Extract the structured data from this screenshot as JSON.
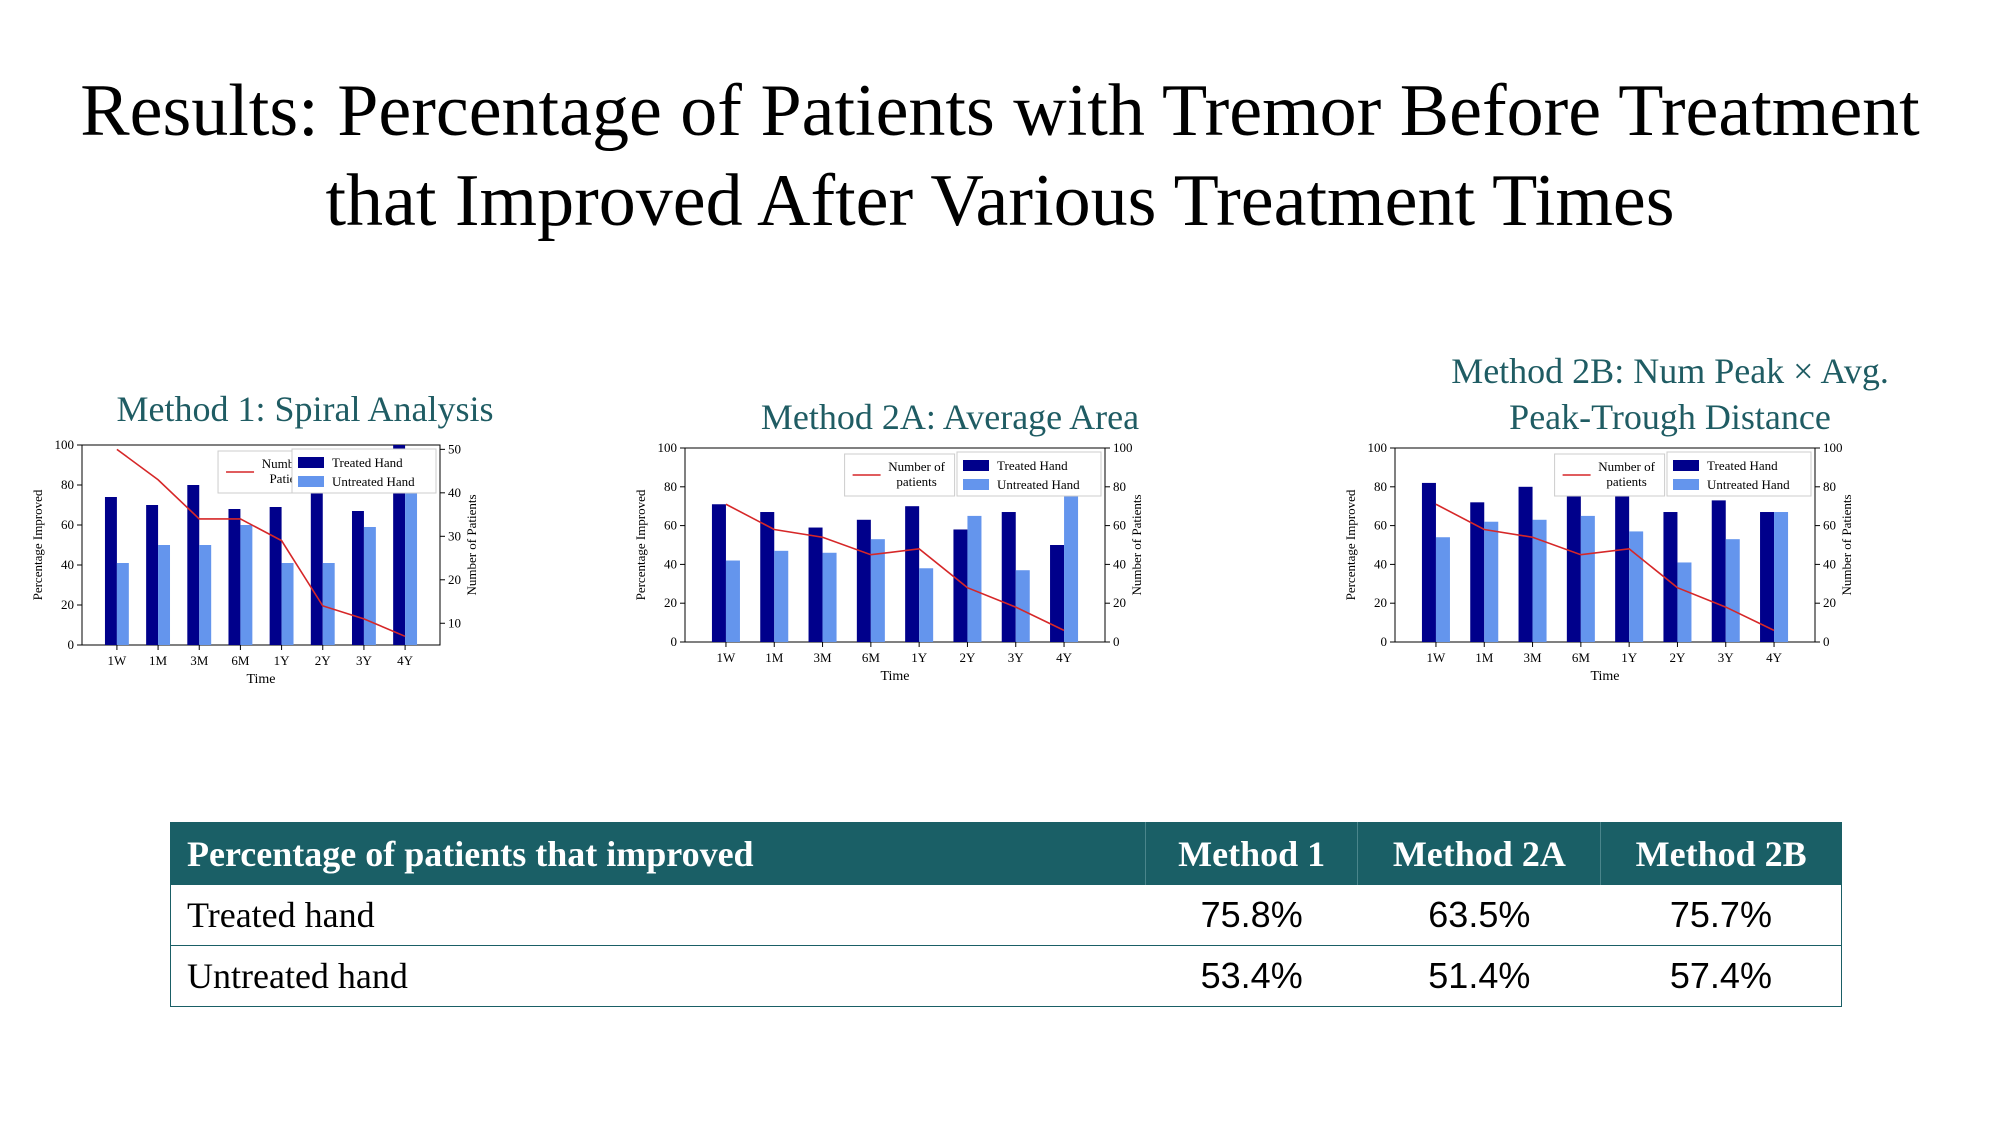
{
  "slide": {
    "title_line1": "Results: Percentage of Patients with Tremor Before Treatment",
    "title_line2": "that Improved After Various Treatment Times"
  },
  "colors": {
    "treated": "#00008b",
    "untreated": "#6495ed",
    "count_line": "#d62728",
    "chart_title": "#1f5c63",
    "table_header": "#1a5f66"
  },
  "chart_data": [
    {
      "type": "bar",
      "title": "Method 1: Spiral Analysis",
      "categories": [
        "1W",
        "1M",
        "3M",
        "6M",
        "1Y",
        "2Y",
        "3Y",
        "4Y"
      ],
      "xlabel": "Time",
      "ylabel": "Percentage Improved",
      "y2label": "Number of  Patients",
      "ylim": [
        0,
        100
      ],
      "yticks": [
        0,
        20,
        40,
        60,
        80,
        100
      ],
      "y2lim": [
        5,
        51
      ],
      "y2ticks": [
        10,
        20,
        30,
        40,
        50
      ],
      "series": [
        {
          "name": "Treated Hand",
          "values": [
            74,
            70,
            80,
            68,
            69,
            80,
            67,
            100
          ]
        },
        {
          "name": "Untreated Hand",
          "values": [
            41,
            50,
            50,
            60,
            41,
            41,
            59,
            83
          ]
        }
      ],
      "line_series": {
        "name": "Number of\nPatients",
        "axis": "right",
        "values": [
          50,
          43,
          34,
          34,
          29,
          14,
          11,
          7
        ]
      },
      "legend": {
        "line": "top-center",
        "bars": "top-right"
      }
    },
    {
      "type": "bar",
      "title": "Method 2A: Average Area",
      "categories": [
        "1W",
        "1M",
        "3M",
        "6M",
        "1Y",
        "2Y",
        "3Y",
        "4Y"
      ],
      "xlabel": "Time",
      "ylabel": "Percentage Improved",
      "y2label": "Number of Patients",
      "ylim": [
        0,
        100
      ],
      "yticks": [
        0,
        20,
        40,
        60,
        80,
        100
      ],
      "y2lim": [
        0,
        100
      ],
      "y2ticks": [
        0,
        20,
        40,
        60,
        80,
        100
      ],
      "series": [
        {
          "name": "Treated Hand",
          "values": [
            71,
            67,
            59,
            63,
            70,
            58,
            67,
            50
          ]
        },
        {
          "name": "Untreated Hand",
          "values": [
            42,
            47,
            46,
            53,
            38,
            65,
            37,
            83
          ]
        }
      ],
      "line_series": {
        "name": "Number of\npatients",
        "axis": "right",
        "values": [
          71,
          58,
          54,
          45,
          48,
          28,
          18,
          6
        ]
      },
      "legend": {
        "line": "top-center",
        "bars": "top-right"
      }
    },
    {
      "type": "bar",
      "title": "Method 2B: Num Peak × Avg.\nPeak-Trough Distance",
      "categories": [
        "1W",
        "1M",
        "3M",
        "6M",
        "1Y",
        "2Y",
        "3Y",
        "4Y"
      ],
      "xlabel": "Time",
      "ylabel": "Percentage Improved",
      "y2label": "Number of Patients",
      "ylim": [
        0,
        100
      ],
      "yticks": [
        0,
        20,
        40,
        60,
        80,
        100
      ],
      "y2lim": [
        0,
        100
      ],
      "y2ticks": [
        0,
        20,
        40,
        60,
        80,
        100
      ],
      "series": [
        {
          "name": "Treated Hand",
          "values": [
            82,
            72,
            80,
            83,
            80,
            67,
            73,
            67
          ]
        },
        {
          "name": "Untreated Hand",
          "values": [
            54,
            62,
            63,
            65,
            57,
            41,
            53,
            67
          ]
        }
      ],
      "line_series": {
        "name": "Number of\npatients",
        "axis": "right",
        "values": [
          71,
          58,
          54,
          45,
          48,
          28,
          18,
          6
        ]
      },
      "legend": {
        "line": "top-center",
        "bars": "top-right"
      }
    }
  ],
  "table": {
    "headers": [
      "Percentage of patients that improved",
      "Method 1",
      "Method 2A",
      "Method 2B"
    ],
    "rows": [
      [
        "Treated hand",
        "75.8%",
        "63.5%",
        "75.7%"
      ],
      [
        "Untreated hand",
        "53.4%",
        "51.4%",
        "57.4%"
      ]
    ]
  }
}
